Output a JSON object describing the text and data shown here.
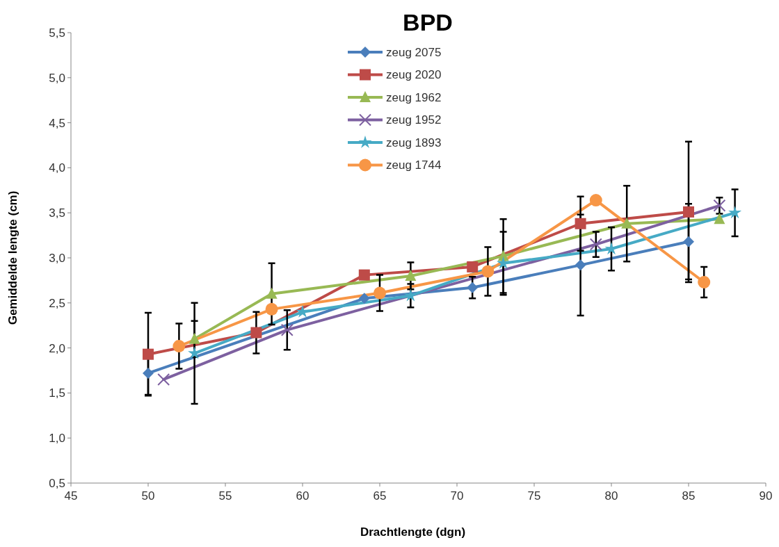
{
  "chart_data": {
    "type": "line",
    "title": "BPD",
    "xlabel": "Drachtlengte (dgn)",
    "ylabel": "Gemiddelde lengte (cm)",
    "xlim": [
      45,
      90
    ],
    "xticks": [
      45,
      50,
      55,
      60,
      65,
      70,
      75,
      80,
      85,
      90
    ],
    "ylim": [
      0.5,
      5.5
    ],
    "yticks": [
      {
        "value": 0.5,
        "label": "0,5"
      },
      {
        "value": 1,
        "label": "1,0"
      },
      {
        "value": 1.5,
        "label": "1,5"
      },
      {
        "value": 2,
        "label": "2,0"
      },
      {
        "value": 2.5,
        "label": "2,5"
      },
      {
        "value": 3,
        "label": "3,0"
      },
      {
        "value": 3.5,
        "label": "3,5"
      },
      {
        "value": 4,
        "label": "4,0"
      },
      {
        "value": 4.5,
        "label": "4,5"
      },
      {
        "value": 5,
        "label": "5,0"
      },
      {
        "value": 5.5,
        "label": "5,5"
      }
    ],
    "legend": "top",
    "grid": false,
    "series": [
      {
        "name": "zeug 2075",
        "color": "#4a7ebb",
        "marker": "diamond",
        "x": [
          50,
          64,
          71,
          78,
          85
        ],
        "values": [
          1.72,
          2.55,
          2.67,
          2.92,
          3.18
        ],
        "errors": [
          0.24,
          null,
          0.12,
          0.56,
          0.42
        ]
      },
      {
        "name": "zeug 2020",
        "color": "#be4b48",
        "marker": "square",
        "x": [
          50,
          57,
          64,
          71,
          78,
          85
        ],
        "values": [
          1.93,
          2.17,
          2.81,
          2.9,
          3.38,
          3.51
        ],
        "errors": [
          0.46,
          0.23,
          null,
          null,
          0.3,
          0.78
        ]
      },
      {
        "name": "zeug 1962",
        "color": "#98b954",
        "marker": "triangle",
        "x": [
          53,
          58,
          67,
          73,
          81,
          87
        ],
        "values": [
          2.1,
          2.6,
          2.8,
          3.02,
          3.38,
          3.43
        ],
        "errors": [
          0.2,
          0.34,
          0.15,
          0.41,
          0.42,
          null
        ]
      },
      {
        "name": "zeug 1952",
        "color": "#7d60a0",
        "marker": "cross",
        "x": [
          51,
          59,
          79,
          87
        ],
        "values": [
          1.65,
          2.2,
          3.15,
          3.58
        ],
        "errors": [
          null,
          0.22,
          0.14,
          0.09
        ]
      },
      {
        "name": "zeug 1893",
        "color": "#46aac5",
        "marker": "star",
        "x": [
          53,
          60,
          67,
          73,
          80,
          88
        ],
        "values": [
          1.94,
          2.4,
          2.58,
          2.94,
          3.1,
          3.5
        ],
        "errors": [
          0.56,
          null,
          0.13,
          0.35,
          0.24,
          0.26
        ]
      },
      {
        "name": "zeug 1744",
        "color": "#f79646",
        "marker": "circle",
        "x": [
          52,
          58,
          65,
          72,
          79,
          86
        ],
        "values": [
          2.02,
          2.43,
          2.61,
          2.85,
          3.64,
          2.73
        ],
        "errors": [
          0.25,
          null,
          0.2,
          0.27,
          null,
          0.17
        ]
      }
    ]
  }
}
